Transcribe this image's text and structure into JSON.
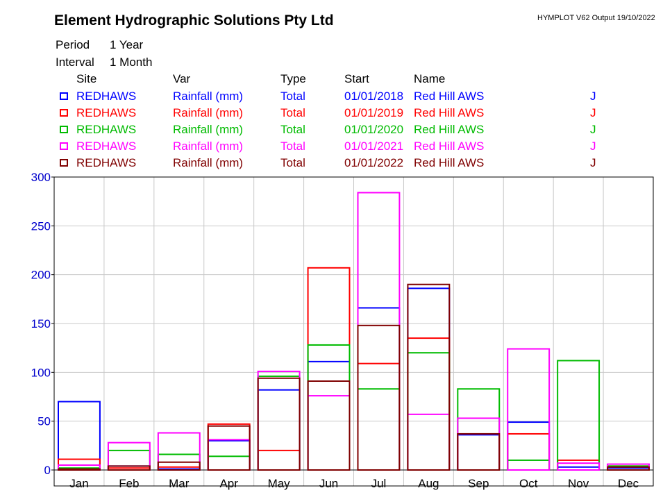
{
  "header": {
    "title": "Element Hydrographic Solutions Pty Ltd",
    "meta": "HYMPLOT V62  Output 19/10/2022",
    "period_label": "Period",
    "period_value": "1 Year",
    "interval_label": "Interval",
    "interval_value": "1 Month"
  },
  "legend": {
    "columns": [
      "Site",
      "Var",
      "Type",
      "Start",
      "Name"
    ],
    "rows": [
      {
        "site": "REDHAWS",
        "var": "Rainfall (mm)",
        "type": "Total",
        "start": "01/01/2018",
        "name": "Red Hill AWS",
        "flag": "J",
        "color": "#0000ff"
      },
      {
        "site": "REDHAWS",
        "var": "Rainfall (mm)",
        "type": "Total",
        "start": "01/01/2019",
        "name": "Red Hill AWS",
        "flag": "J",
        "color": "#ff0000"
      },
      {
        "site": "REDHAWS",
        "var": "Rainfall (mm)",
        "type": "Total",
        "start": "01/01/2020",
        "name": "Red Hill AWS",
        "flag": "J",
        "color": "#00bb00"
      },
      {
        "site": "REDHAWS",
        "var": "Rainfall (mm)",
        "type": "Total",
        "start": "01/01/2021",
        "name": "Red Hill AWS",
        "flag": "J",
        "color": "#ff00ff"
      },
      {
        "site": "REDHAWS",
        "var": "Rainfall (mm)",
        "type": "Total",
        "start": "01/01/2022",
        "name": "Red Hill AWS",
        "flag": "J",
        "color": "#800000"
      }
    ]
  },
  "chart_data": {
    "type": "bar",
    "categories": [
      "Jan",
      "Feb",
      "Mar",
      "Apr",
      "May",
      "Jun",
      "Jul",
      "Aug",
      "Sep",
      "Oct",
      "Nov",
      "Dec"
    ],
    "ylim": [
      0,
      300
    ],
    "yticks": [
      0,
      50,
      100,
      150,
      200,
      250,
      300
    ],
    "grid": true,
    "axis_label_color": "#0000cc",
    "series": [
      {
        "color": "#0000ff",
        "values": [
          70,
          4,
          1,
          30,
          82,
          111,
          166,
          186,
          36,
          49,
          3,
          2
        ]
      },
      {
        "color": "#ff0000",
        "values": [
          11,
          2,
          3,
          47,
          20,
          207,
          109,
          135,
          37,
          37,
          10,
          4
        ]
      },
      {
        "color": "#00bb00",
        "values": [
          2,
          20,
          16,
          14,
          96,
          128,
          83,
          120,
          83,
          10,
          112,
          4
        ]
      },
      {
        "color": "#ff00ff",
        "values": [
          5,
          28,
          38,
          31,
          101,
          76,
          284,
          57,
          53,
          124,
          7,
          6
        ]
      },
      {
        "color": "#800000",
        "values": [
          1,
          4,
          8,
          45,
          94,
          91,
          148,
          190,
          37,
          0,
          0,
          3
        ]
      }
    ]
  }
}
